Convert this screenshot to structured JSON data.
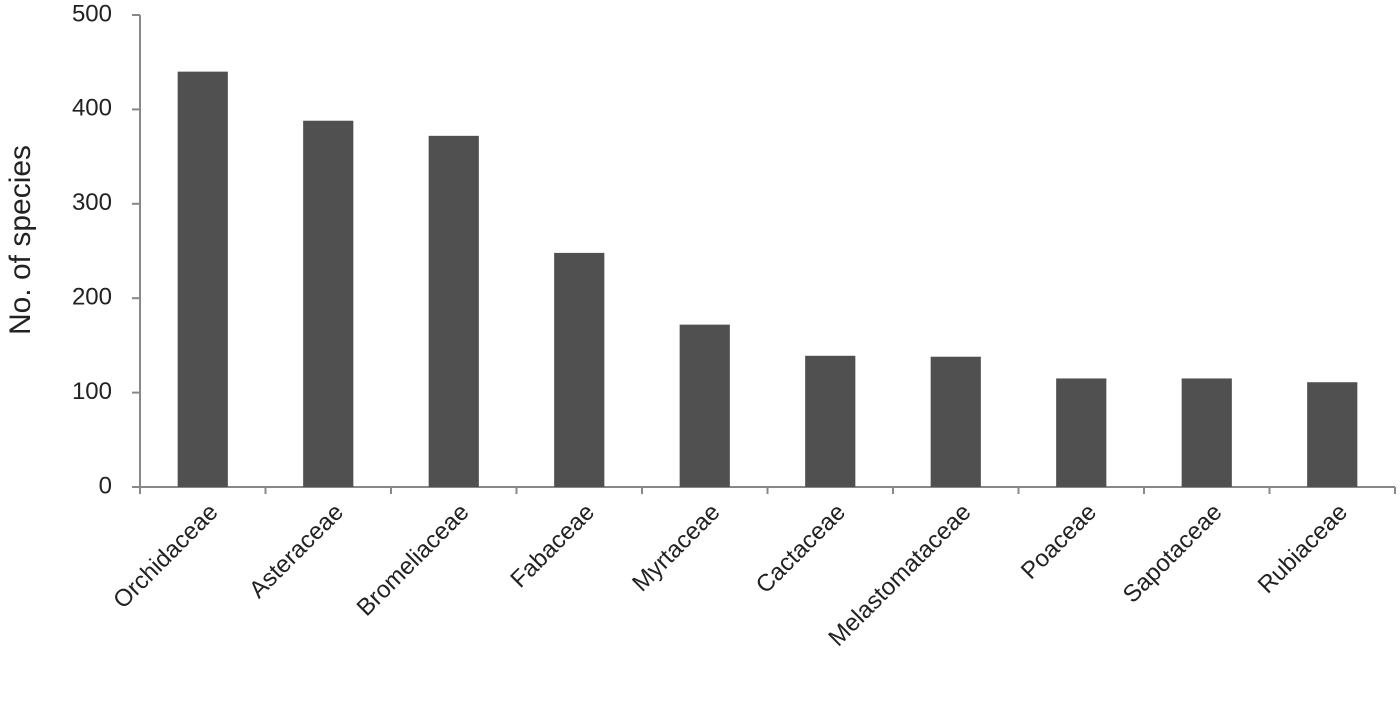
{
  "chart_data": {
    "type": "bar",
    "y_label": "No. of species",
    "categories": [
      "Orchidaceae",
      "Asteraceae",
      "Bromeliaceae",
      "Fabaceae",
      "Myrtaceae",
      "Cactaceae",
      "Melastomataceae",
      "Poaceae",
      "Sapotaceae",
      "Rubiaceae"
    ],
    "values": [
      440,
      388,
      372,
      248,
      172,
      139,
      138,
      115,
      115,
      111
    ],
    "color": "#505050",
    "ylim": [
      0,
      500
    ],
    "yticks": [
      0,
      100,
      200,
      300,
      400,
      500
    ],
    "grid": false
  }
}
